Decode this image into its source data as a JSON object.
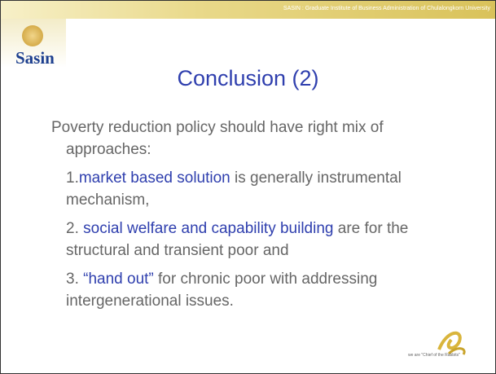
{
  "header": {
    "banner": "SASIN : Graduate Institute of Business Administration of Chulalongkorn University",
    "logo": "Sasin"
  },
  "slide": {
    "title": "Conclusion (2)",
    "intro": "Poverty reduction policy should have right mix of approaches:",
    "items": [
      {
        "number": "1.",
        "highlight": "market based solution",
        "text": " is generally instrumental mechanism,"
      },
      {
        "number": "2. ",
        "highlight": "social welfare and capability building",
        "text": " are for the structural and transient poor and"
      },
      {
        "number": "3. ",
        "highlight": "“hand out”",
        "text": " for chronic poor with addressing intergenerational issues."
      }
    ]
  },
  "footer": {
    "tagline": "we are \"Chief of the Rabbits\""
  }
}
